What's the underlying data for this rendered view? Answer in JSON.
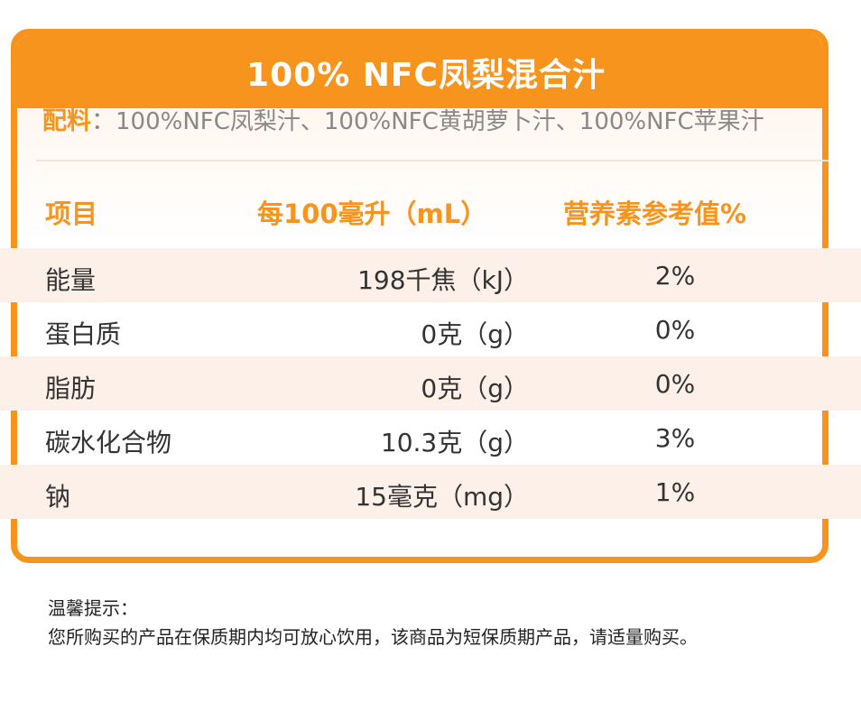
{
  "card": {
    "title": "100% NFC凤梨混合汁",
    "ingredients_label": "配料",
    "ingredients_colon": "：",
    "ingredients_text": "100%NFC凤梨汁、100%NFC黄胡萝卜汁、100%NFC苹果汁"
  },
  "table": {
    "headers": {
      "item": "项目",
      "per": "每100毫升（mL）",
      "nrv": "营养素参考值%"
    },
    "rows": [
      {
        "item": "能量",
        "value": "198千焦（kJ）",
        "nrv": "2%"
      },
      {
        "item": "蛋白质",
        "value": "0克（g）",
        "nrv": "0%"
      },
      {
        "item": "脂肪",
        "value": "0克（g）",
        "nrv": "0%"
      },
      {
        "item": "碳水化合物",
        "value": "10.3克（g）",
        "nrv": "3%"
      },
      {
        "item": "钠",
        "value": "15毫克（mg）",
        "nrv": "1%"
      }
    ]
  },
  "note": {
    "title": "温馨提示：",
    "body": "您所购买的产品在保质期内均可放心饮用，该商品为短保质期产品，请适量购买。"
  },
  "colors": {
    "accent": "#f7941d",
    "row_tint": "#fdf0e8"
  }
}
